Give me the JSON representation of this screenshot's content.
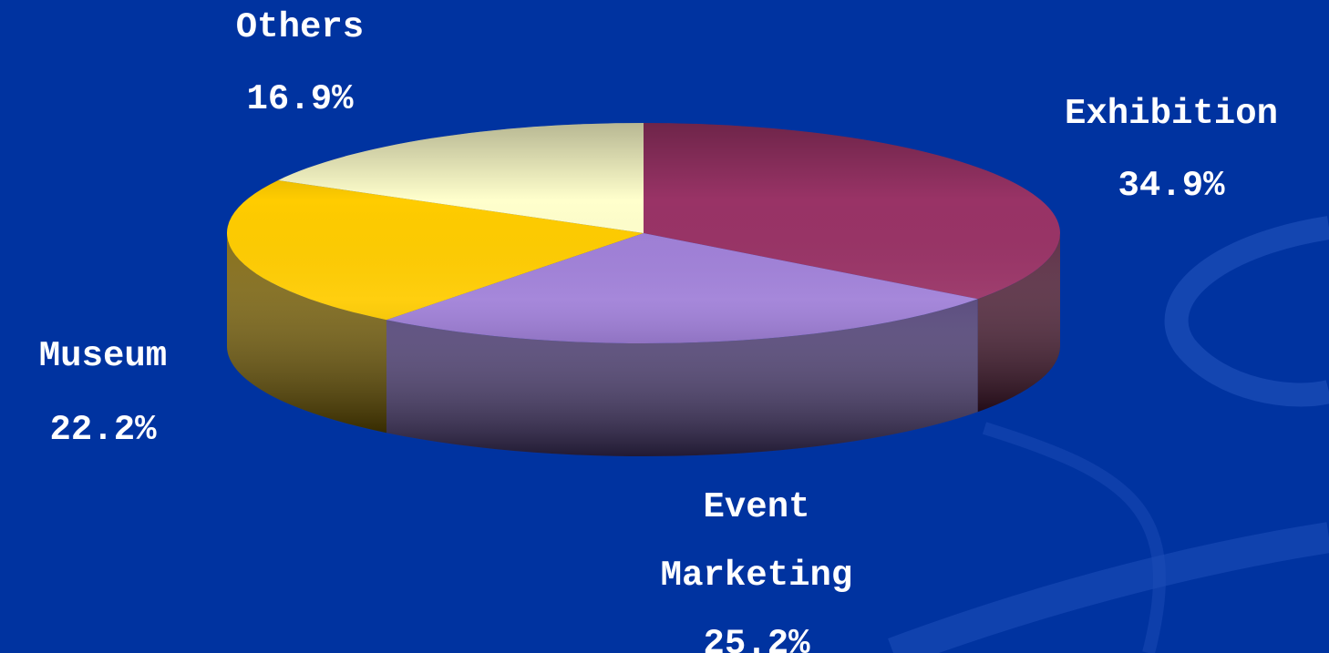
{
  "chart_data": {
    "type": "pie",
    "title": "",
    "three_d": true,
    "start_angle_deg": 90,
    "direction": "clockwise",
    "slices": [
      {
        "label_lines": [
          "Exhibition"
        ],
        "value_label": "34.9%",
        "value": 34.9,
        "color": "#993366",
        "side_color": "#4d1a33"
      },
      {
        "label_lines": [
          "Event",
          "Marketing"
        ],
        "value_label": "25.2%",
        "value": 25.2,
        "color": "#a080d8",
        "side_color": "#4a3a72"
      },
      {
        "label_lines": [
          "Museum"
        ],
        "value_label": "22.2%",
        "value": 22.2,
        "color": "#ffcc00",
        "side_color": "#7a6000"
      },
      {
        "label_lines": [
          "Others"
        ],
        "value_label": "16.9%",
        "value": 16.9,
        "color": "#ffffcc",
        "side_color": "#9a9a70"
      }
    ]
  },
  "background": {
    "color": "#0033a0",
    "swirl_color": "#1f4eb8"
  },
  "labels": {
    "exhibition": {
      "name": "Exhibition",
      "pct": "34.9%"
    },
    "event": {
      "name_line1": "Event",
      "name_line2": "Marketing",
      "pct": "25.2%"
    },
    "museum": {
      "name": "Museum",
      "pct": "22.2%"
    },
    "others": {
      "name": "Others",
      "pct": "16.9%"
    }
  }
}
